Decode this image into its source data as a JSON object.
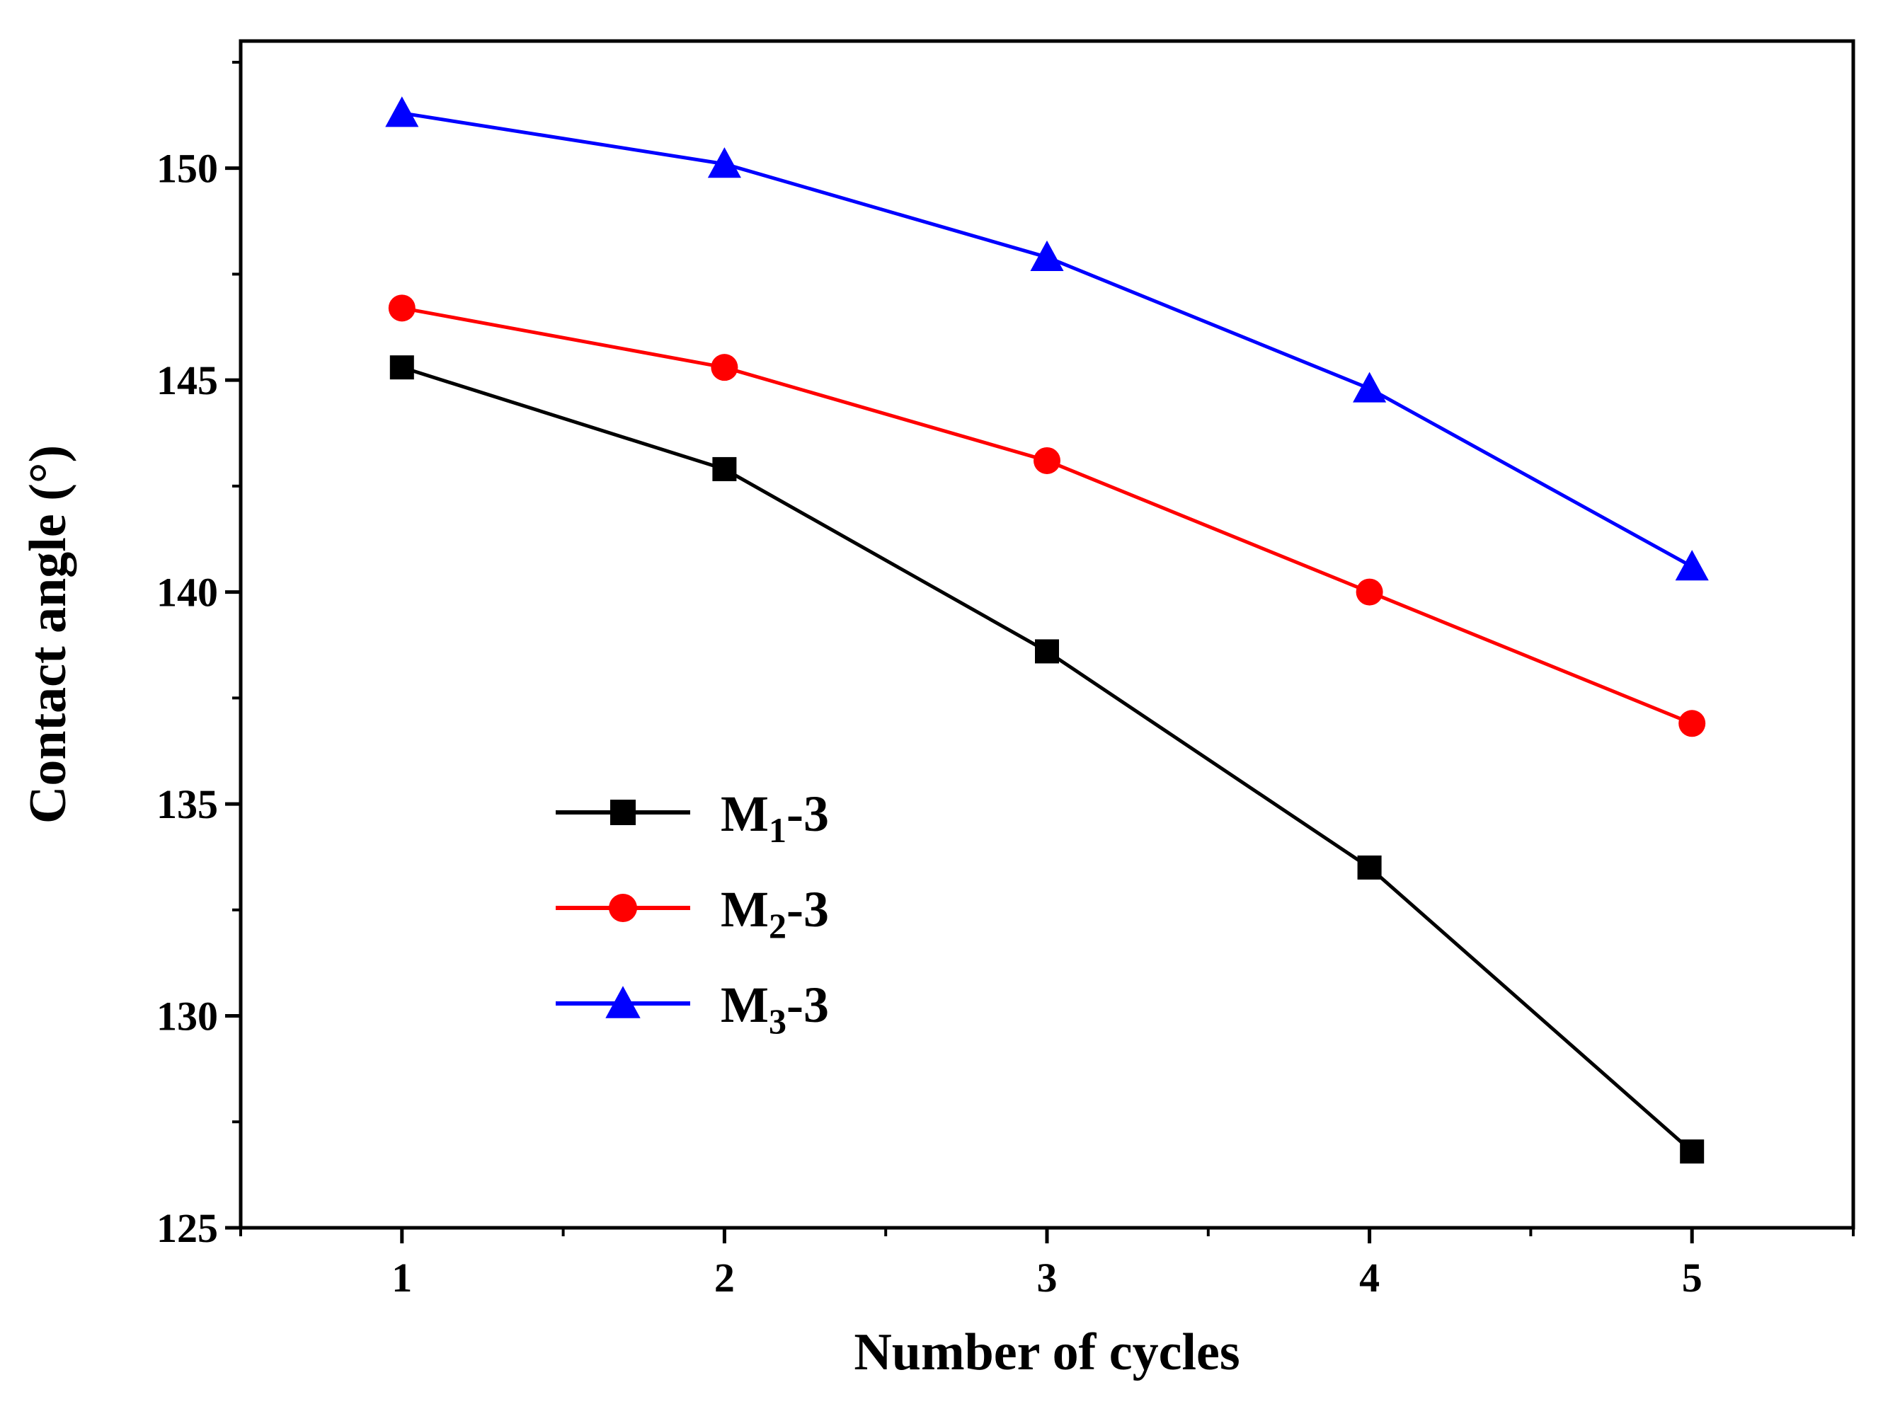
{
  "chart_data": {
    "type": "line",
    "title": "",
    "xlabel": "Number of cycles",
    "ylabel": "Contact angle (°)",
    "x": [
      1,
      2,
      3,
      4,
      5
    ],
    "xlim": [
      0.5,
      5.5
    ],
    "ylim": [
      125,
      153
    ],
    "xticks": [
      1,
      2,
      3,
      4,
      5
    ],
    "yticks": [
      125,
      130,
      135,
      140,
      145,
      150
    ],
    "legend_position": "center-left",
    "grid": false,
    "series": [
      {
        "name_main": "M",
        "name_sub": "1",
        "name_suffix": "-3",
        "color": "#000000",
        "marker": "square",
        "values": [
          145.3,
          142.9,
          138.6,
          133.5,
          126.8
        ]
      },
      {
        "name_main": "M",
        "name_sub": "2",
        "name_suffix": "-3",
        "color": "#ff0000",
        "marker": "circle",
        "values": [
          146.7,
          145.3,
          143.1,
          140.0,
          136.9
        ]
      },
      {
        "name_main": "M",
        "name_sub": "3",
        "name_suffix": "-3",
        "color": "#0000ff",
        "marker": "triangle",
        "values": [
          151.3,
          150.1,
          147.9,
          144.8,
          140.6
        ]
      }
    ]
  }
}
